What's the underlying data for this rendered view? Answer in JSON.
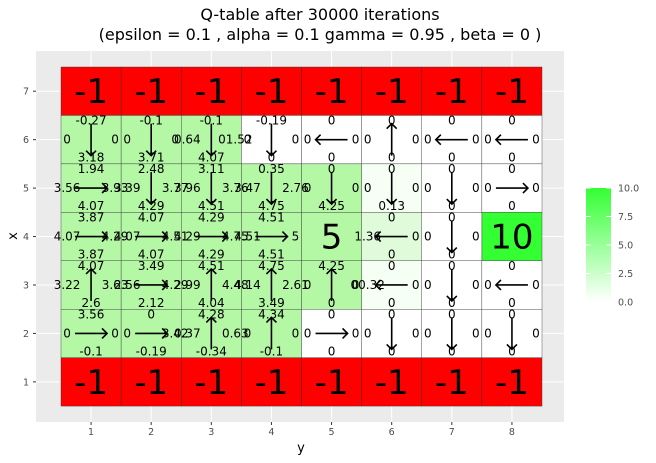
{
  "chart_data": {
    "type": "heatmap",
    "title_line1": "Q-table after  30000  iterations",
    "title_line2": "(epsilon =  0.1 , alpha =  0.1 gamma =  0.95 , beta =  0 )",
    "xlabel": "y",
    "ylabel": "x",
    "x_ticks": [
      "1",
      "2",
      "3",
      "4",
      "5",
      "6",
      "7",
      "8"
    ],
    "y_ticks": [
      "1",
      "2",
      "3",
      "4",
      "5",
      "6",
      "7"
    ],
    "legend": {
      "ticks": [
        "10.0",
        "7.5",
        "5.0",
        "2.5",
        "0.0"
      ],
      "tick_values": [
        10,
        7.5,
        5,
        2.5,
        0
      ],
      "range": [
        0,
        10
      ],
      "low_color": "#ffffff",
      "high_color": "#33ff33"
    },
    "colors": {
      "panel": "#ebebeb",
      "grid": "#ffffff",
      "special_negative": "#ff0000",
      "goal": "#33ff33",
      "mid": "#b4f7a4"
    },
    "special_cells": [
      {
        "x": 1,
        "y": 1,
        "label": "-1"
      },
      {
        "x": 1,
        "y": 2,
        "label": "-1"
      },
      {
        "x": 1,
        "y": 3,
        "label": "-1"
      },
      {
        "x": 1,
        "y": 4,
        "label": "-1"
      },
      {
        "x": 1,
        "y": 5,
        "label": "-1"
      },
      {
        "x": 1,
        "y": 6,
        "label": "-1"
      },
      {
        "x": 1,
        "y": 7,
        "label": "-1"
      },
      {
        "x": 1,
        "y": 8,
        "label": "-1"
      },
      {
        "x": 7,
        "y": 1,
        "label": "-1"
      },
      {
        "x": 7,
        "y": 2,
        "label": "-1"
      },
      {
        "x": 7,
        "y": 3,
        "label": "-1"
      },
      {
        "x": 7,
        "y": 4,
        "label": "-1"
      },
      {
        "x": 7,
        "y": 5,
        "label": "-1"
      },
      {
        "x": 7,
        "y": 6,
        "label": "-1"
      },
      {
        "x": 7,
        "y": 7,
        "label": "-1"
      },
      {
        "x": 7,
        "y": 8,
        "label": "-1"
      },
      {
        "x": 4,
        "y": 5,
        "label": "5"
      },
      {
        "x": 4,
        "y": 8,
        "label": "10"
      }
    ],
    "q_cells": [
      {
        "x": 6,
        "y": 1,
        "up": "-0.27",
        "left": "0",
        "right": "0",
        "down": "3.18",
        "best": "down"
      },
      {
        "x": 6,
        "y": 2,
        "up": "-0.1",
        "left": "0",
        "right": "0",
        "down": "3.71",
        "best": "down"
      },
      {
        "x": 6,
        "y": 3,
        "up": "-0.1",
        "left": "0.64",
        "right": "01.52",
        "down": "4.07",
        "best": "down"
      },
      {
        "x": 6,
        "y": 4,
        "up": "-0.19",
        "left": "0",
        "right": "0",
        "down": "0",
        "best": "down"
      },
      {
        "x": 6,
        "y": 5,
        "up": "0",
        "left": "0",
        "right": "0",
        "down": "0",
        "best": "left"
      },
      {
        "x": 6,
        "y": 6,
        "up": "0",
        "left": "0",
        "right": "0",
        "down": "0",
        "best": "up"
      },
      {
        "x": 6,
        "y": 7,
        "up": "0",
        "left": "0",
        "right": "0",
        "down": "0",
        "best": "left"
      },
      {
        "x": 6,
        "y": 8,
        "up": "0",
        "left": "0",
        "right": "0",
        "down": "0",
        "best": "left"
      },
      {
        "x": 5,
        "y": 1,
        "up": "1.94",
        "left": "3.56",
        "right": "3.93",
        "down": "4.07",
        "best": "right"
      },
      {
        "x": 5,
        "y": 2,
        "up": "2.48",
        "left": "3.39",
        "right": "3.77",
        "down": "4.29",
        "best": "down"
      },
      {
        "x": 5,
        "y": 3,
        "up": "3.11",
        "left": "3.96",
        "right": "3.76",
        "down": "4.51",
        "best": "down"
      },
      {
        "x": 5,
        "y": 4,
        "up": "0.35",
        "left": "3.47",
        "right": "2.76",
        "down": "4.75",
        "best": "down"
      },
      {
        "x": 5,
        "y": 5,
        "up": "0",
        "left": "0",
        "right": "0",
        "down": "4.25",
        "best": "down"
      },
      {
        "x": 5,
        "y": 6,
        "up": "0",
        "left": "0",
        "right": "0",
        "down": "0.13",
        "best": "down"
      },
      {
        "x": 5,
        "y": 7,
        "up": "0",
        "left": "0",
        "right": "0",
        "down": "0",
        "best": "down"
      },
      {
        "x": 5,
        "y": 8,
        "up": "0",
        "left": "0",
        "right": "0",
        "down": "0",
        "best": "right"
      },
      {
        "x": 4,
        "y": 1,
        "up": "3.87",
        "left": "4.07",
        "right": "4.29",
        "down": "3.87",
        "best": "right"
      },
      {
        "x": 4,
        "y": 2,
        "up": "4.07",
        "left": "4.07",
        "right": "4.51",
        "down": "4.07",
        "best": "right"
      },
      {
        "x": 4,
        "y": 3,
        "up": "4.29",
        "left": "4.29",
        "right": "4.75",
        "down": "4.29",
        "best": "right"
      },
      {
        "x": 4,
        "y": 4,
        "up": "4.51",
        "left": "4.51",
        "right": "5",
        "down": "4.51",
        "best": "right"
      },
      {
        "x": 4,
        "y": 6,
        "up": "0",
        "left": "1.36",
        "right": "0",
        "down": "0",
        "best": "left"
      },
      {
        "x": 4,
        "y": 7,
        "up": "0",
        "left": "0",
        "right": "0",
        "down": "0",
        "best": "down"
      },
      {
        "x": 3,
        "y": 1,
        "up": "4.07",
        "left": "3.22",
        "right": "3.63",
        "down": "2.6",
        "best": "up"
      },
      {
        "x": 3,
        "y": 2,
        "up": "3.49",
        "left": "2.56",
        "right": "4.29",
        "down": "2.12",
        "best": "right"
      },
      {
        "x": 3,
        "y": 3,
        "up": "4.51",
        "left": "2.99",
        "right": "4.48",
        "down": "4.04",
        "best": "up"
      },
      {
        "x": 3,
        "y": 4,
        "up": "4.75",
        "left": "4.14",
        "right": "2.61",
        "down": "3.49",
        "best": "up"
      },
      {
        "x": 3,
        "y": 5,
        "up": "4.25",
        "left": "0",
        "right": "0",
        "down": "0",
        "best": "up"
      },
      {
        "x": 3,
        "y": 6,
        "up": "0",
        "left": "00.32",
        "right": "0",
        "down": "0",
        "best": "left"
      },
      {
        "x": 3,
        "y": 7,
        "up": "0",
        "left": "0",
        "right": "0",
        "down": "0",
        "best": "down"
      },
      {
        "x": 3,
        "y": 8,
        "up": "0",
        "left": "0",
        "right": "0",
        "down": "0",
        "best": "left"
      },
      {
        "x": 2,
        "y": 1,
        "up": "3.56",
        "left": "0",
        "right": "0",
        "down": "-0.1",
        "best": "right"
      },
      {
        "x": 2,
        "y": 2,
        "up": "0",
        "left": "0",
        "right": "3.42",
        "down": "-0.19",
        "best": "right"
      },
      {
        "x": 2,
        "y": 3,
        "up": "4.28",
        "left": "0.37",
        "right": "0.63",
        "down": "-0.34",
        "best": "up"
      },
      {
        "x": 2,
        "y": 4,
        "up": "4.34",
        "left": "0",
        "right": "0",
        "down": "-0.1",
        "best": "up"
      },
      {
        "x": 2,
        "y": 5,
        "up": "0",
        "left": "0",
        "right": "0",
        "down": "0",
        "best": "right"
      },
      {
        "x": 2,
        "y": 6,
        "up": "0",
        "left": "0",
        "right": "0",
        "down": "0",
        "best": "down"
      },
      {
        "x": 2,
        "y": 7,
        "up": "0",
        "left": "0",
        "right": "0",
        "down": "0",
        "best": "down"
      },
      {
        "x": 2,
        "y": 8,
        "up": "0",
        "left": "0",
        "right": "0",
        "down": "0",
        "best": "down"
      }
    ],
    "grid": "on",
    "legend_placement": "right"
  }
}
